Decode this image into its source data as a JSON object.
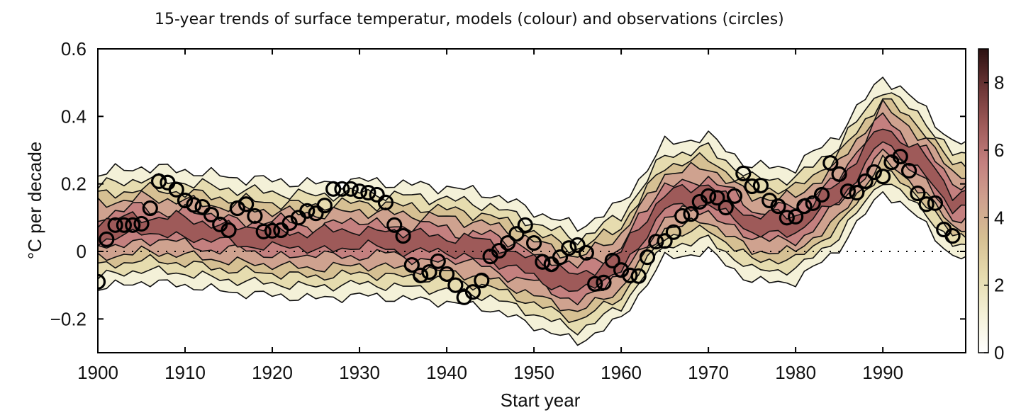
{
  "chart_data": {
    "type": "heatmap",
    "title": "15-year trends of surface temperatur, models (colour) and observations (circles)",
    "xlabel": "Start year",
    "ylabel": "°C per decade",
    "xlim": [
      1900,
      1999.5
    ],
    "ylim": [
      -0.3,
      0.6
    ],
    "xticks": [
      "1900",
      "1910",
      "1920",
      "1930",
      "1940",
      "1950",
      "1960",
      "1970",
      "1980",
      "1990"
    ],
    "yticks": [
      "0.6",
      "0.4",
      "0.2",
      "0",
      "−0.2"
    ],
    "grid": false,
    "reference_line": {
      "y": 0,
      "style": "dotted"
    },
    "colorbar": {
      "range": [
        0,
        9
      ],
      "ticks": [
        "0",
        "2",
        "4",
        "6",
        "8"
      ],
      "colors": [
        "#ffffff",
        "#f4f1d8",
        "#e6dcaf",
        "#d6c093",
        "#cfa28f",
        "#c4807f",
        "#9e5a59",
        "#6b3535",
        "#2b1010"
      ]
    },
    "models_density_ridge": {
      "x": [
        1900,
        1905,
        1910,
        1915,
        1920,
        1925,
        1930,
        1935,
        1940,
        1945,
        1950,
        1955,
        1960,
        1965,
        1970,
        1975,
        1980,
        1985,
        1990,
        1995,
        1998
      ],
      "y": [
        0.06,
        0.08,
        0.07,
        0.05,
        0.04,
        0.03,
        0.04,
        0.03,
        0.02,
        0.0,
        -0.05,
        -0.1,
        -0.03,
        0.15,
        0.17,
        0.08,
        0.08,
        0.18,
        0.35,
        0.25,
        0.15
      ]
    },
    "observations": {
      "marker": "circle",
      "x": [
        1900,
        1901,
        1902,
        1903,
        1904,
        1905,
        1906,
        1907,
        1908,
        1909,
        1910,
        1911,
        1912,
        1913,
        1914,
        1915,
        1916,
        1917,
        1918,
        1919,
        1920,
        1921,
        1922,
        1923,
        1924,
        1925,
        1926,
        1927,
        1928,
        1929,
        1930,
        1931,
        1932,
        1933,
        1934,
        1935,
        1936,
        1937,
        1938,
        1939,
        1940,
        1941,
        1942,
        1943,
        1944,
        1945,
        1946,
        1947,
        1948,
        1949,
        1950,
        1951,
        1952,
        1953,
        1954,
        1955,
        1956,
        1957,
        1958,
        1959,
        1960,
        1961,
        1962,
        1963,
        1964,
        1965,
        1966,
        1967,
        1968,
        1969,
        1970,
        1971,
        1972,
        1973,
        1974,
        1975,
        1976,
        1977,
        1978,
        1979,
        1980,
        1981,
        1982,
        1983,
        1984,
        1985,
        1986,
        1987,
        1988,
        1989,
        1990,
        1991,
        1992,
        1993,
        1994,
        1995,
        1996,
        1997,
        1998
      ],
      "y": [
        -0.09,
        0.036,
        0.078,
        0.078,
        0.078,
        0.082,
        0.128,
        0.208,
        0.204,
        0.183,
        0.151,
        0.138,
        0.132,
        0.109,
        0.08,
        0.063,
        0.128,
        0.14,
        0.105,
        0.059,
        0.061,
        0.063,
        0.084,
        0.1,
        0.12,
        0.113,
        0.136,
        0.185,
        0.185,
        0.185,
        0.178,
        0.174,
        0.168,
        0.145,
        0.078,
        0.046,
        -0.04,
        -0.071,
        -0.061,
        -0.029,
        -0.067,
        -0.1,
        -0.136,
        -0.12,
        -0.086,
        -0.015,
        0.002,
        0.025,
        0.052,
        0.078,
        0.025,
        -0.031,
        -0.038,
        -0.017,
        0.01,
        0.019,
        -0.004,
        -0.096,
        -0.092,
        -0.027,
        -0.055,
        -0.071,
        -0.073,
        -0.017,
        0.029,
        0.031,
        0.057,
        0.105,
        0.111,
        0.147,
        0.164,
        0.159,
        0.13,
        0.164,
        0.231,
        0.193,
        0.195,
        0.151,
        0.134,
        0.1,
        0.103,
        0.134,
        0.143,
        0.168,
        0.262,
        0.229,
        0.178,
        0.174,
        0.208,
        0.235,
        0.222,
        0.264,
        0.281,
        0.239,
        0.172,
        0.14,
        0.143,
        0.065,
        0.046
      ]
    }
  }
}
